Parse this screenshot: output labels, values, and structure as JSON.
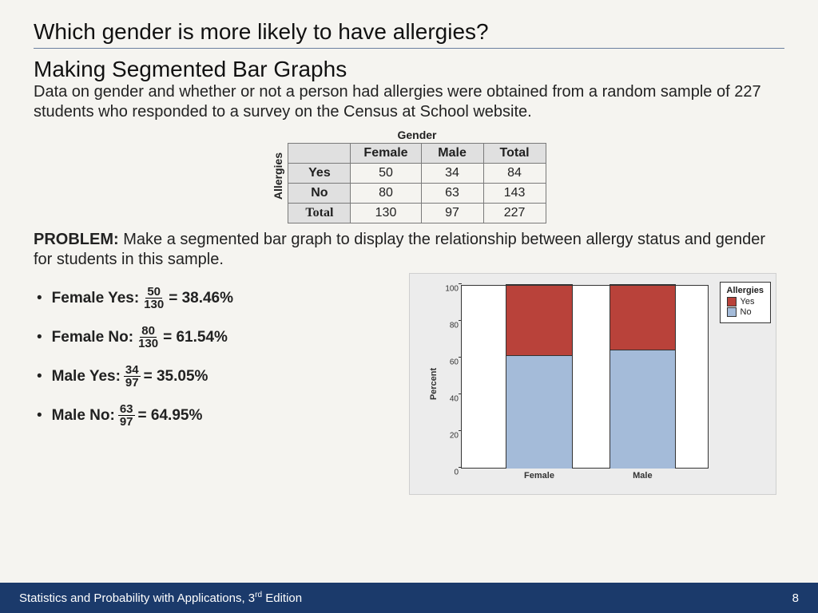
{
  "title": {
    "line1": "Which gender is more likely to have allergies?",
    "line2": "Making Segmented Bar Graphs"
  },
  "intro": "Data on gender and whether or not a person had allergies were obtained from a random sample of 227 students who responded to a survey on the Census at School website.",
  "table": {
    "top_label": "Gender",
    "side_label": "Allergies",
    "columns": [
      "Female",
      "Male",
      "Total"
    ],
    "rows": [
      {
        "head": "Yes",
        "cells": [
          "50",
          "34",
          "84"
        ]
      },
      {
        "head": "No",
        "cells": [
          "80",
          "63",
          "143"
        ]
      },
      {
        "head": "Total",
        "cells": [
          "130",
          "97",
          "227"
        ]
      }
    ]
  },
  "problem": {
    "label": "PROBLEM:",
    "text": "Make a segmented bar graph to display the relationship between allergy status and gender for students in this sample."
  },
  "bullets": [
    {
      "label": "Female Yes:",
      "num": "50",
      "den": "130",
      "result": "38.46%"
    },
    {
      "label": "Female No:",
      "num": "80",
      "den": "130",
      "result": "61.54%"
    },
    {
      "label": "Male Yes:",
      "num": "34",
      "den": "97",
      "result": "35.05%"
    },
    {
      "label": "Male No:",
      "num": "63",
      "den": "97",
      "result": "64.95%"
    }
  ],
  "chart": {
    "type": "stacked-bar",
    "ylabel": "Percent",
    "ylim": [
      0,
      100
    ],
    "ytick_step": 20,
    "yticks": [
      "0",
      "20",
      "40",
      "60",
      "80",
      "100"
    ],
    "categories": [
      "Female",
      "Male"
    ],
    "series": [
      {
        "name": "No",
        "color": "#a4bbd9",
        "values": [
          61.54,
          64.95
        ]
      },
      {
        "name": "Yes",
        "color": "#b9423a",
        "values": [
          38.46,
          35.05
        ]
      }
    ],
    "legend": {
      "title": "Allergies",
      "items": [
        {
          "label": "Yes",
          "color": "#b9423a"
        },
        {
          "label": "No",
          "color": "#a4bbd9"
        }
      ]
    },
    "background_color": "#ececec",
    "plot_background": "#ffffff",
    "axis_color": "#333333",
    "bar_positions_pct": [
      18,
      60
    ],
    "bar_width_pct": 27
  },
  "footer": {
    "text_prefix": "Statistics and Probability with Applications, 3",
    "text_sup": "rd",
    "text_suffix": " Edition",
    "page": "8",
    "background": "#1b3a6b"
  }
}
